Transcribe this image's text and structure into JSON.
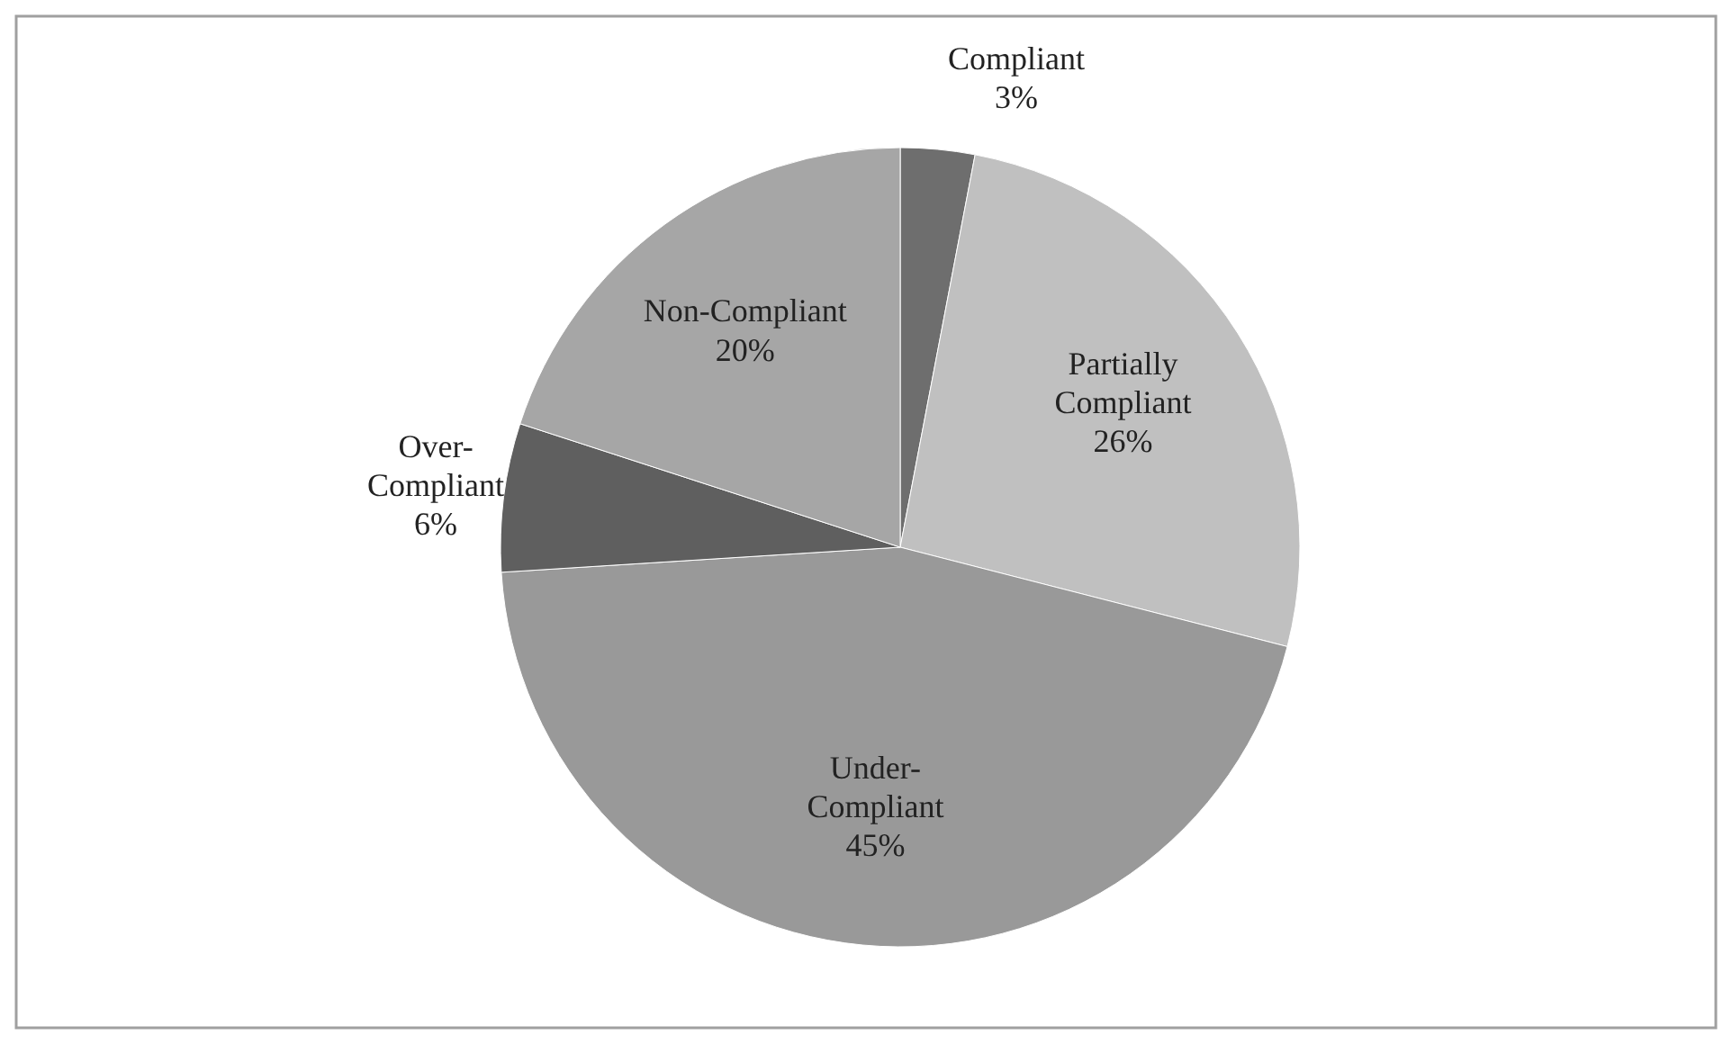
{
  "chart_data": {
    "type": "pie",
    "categories": [
      "Compliant",
      "Partially Compliant",
      "Under-Compliant",
      "Over-Compliant",
      "Non-Compliant"
    ],
    "values": [
      3,
      26,
      45,
      6,
      20
    ],
    "colors": [
      "#6e6e6e",
      "#c0c0c0",
      "#999999",
      "#5f5f5f",
      "#a6a6a6"
    ],
    "value_labels": [
      "3%",
      "26%",
      "45%",
      "6%",
      "20%"
    ]
  }
}
